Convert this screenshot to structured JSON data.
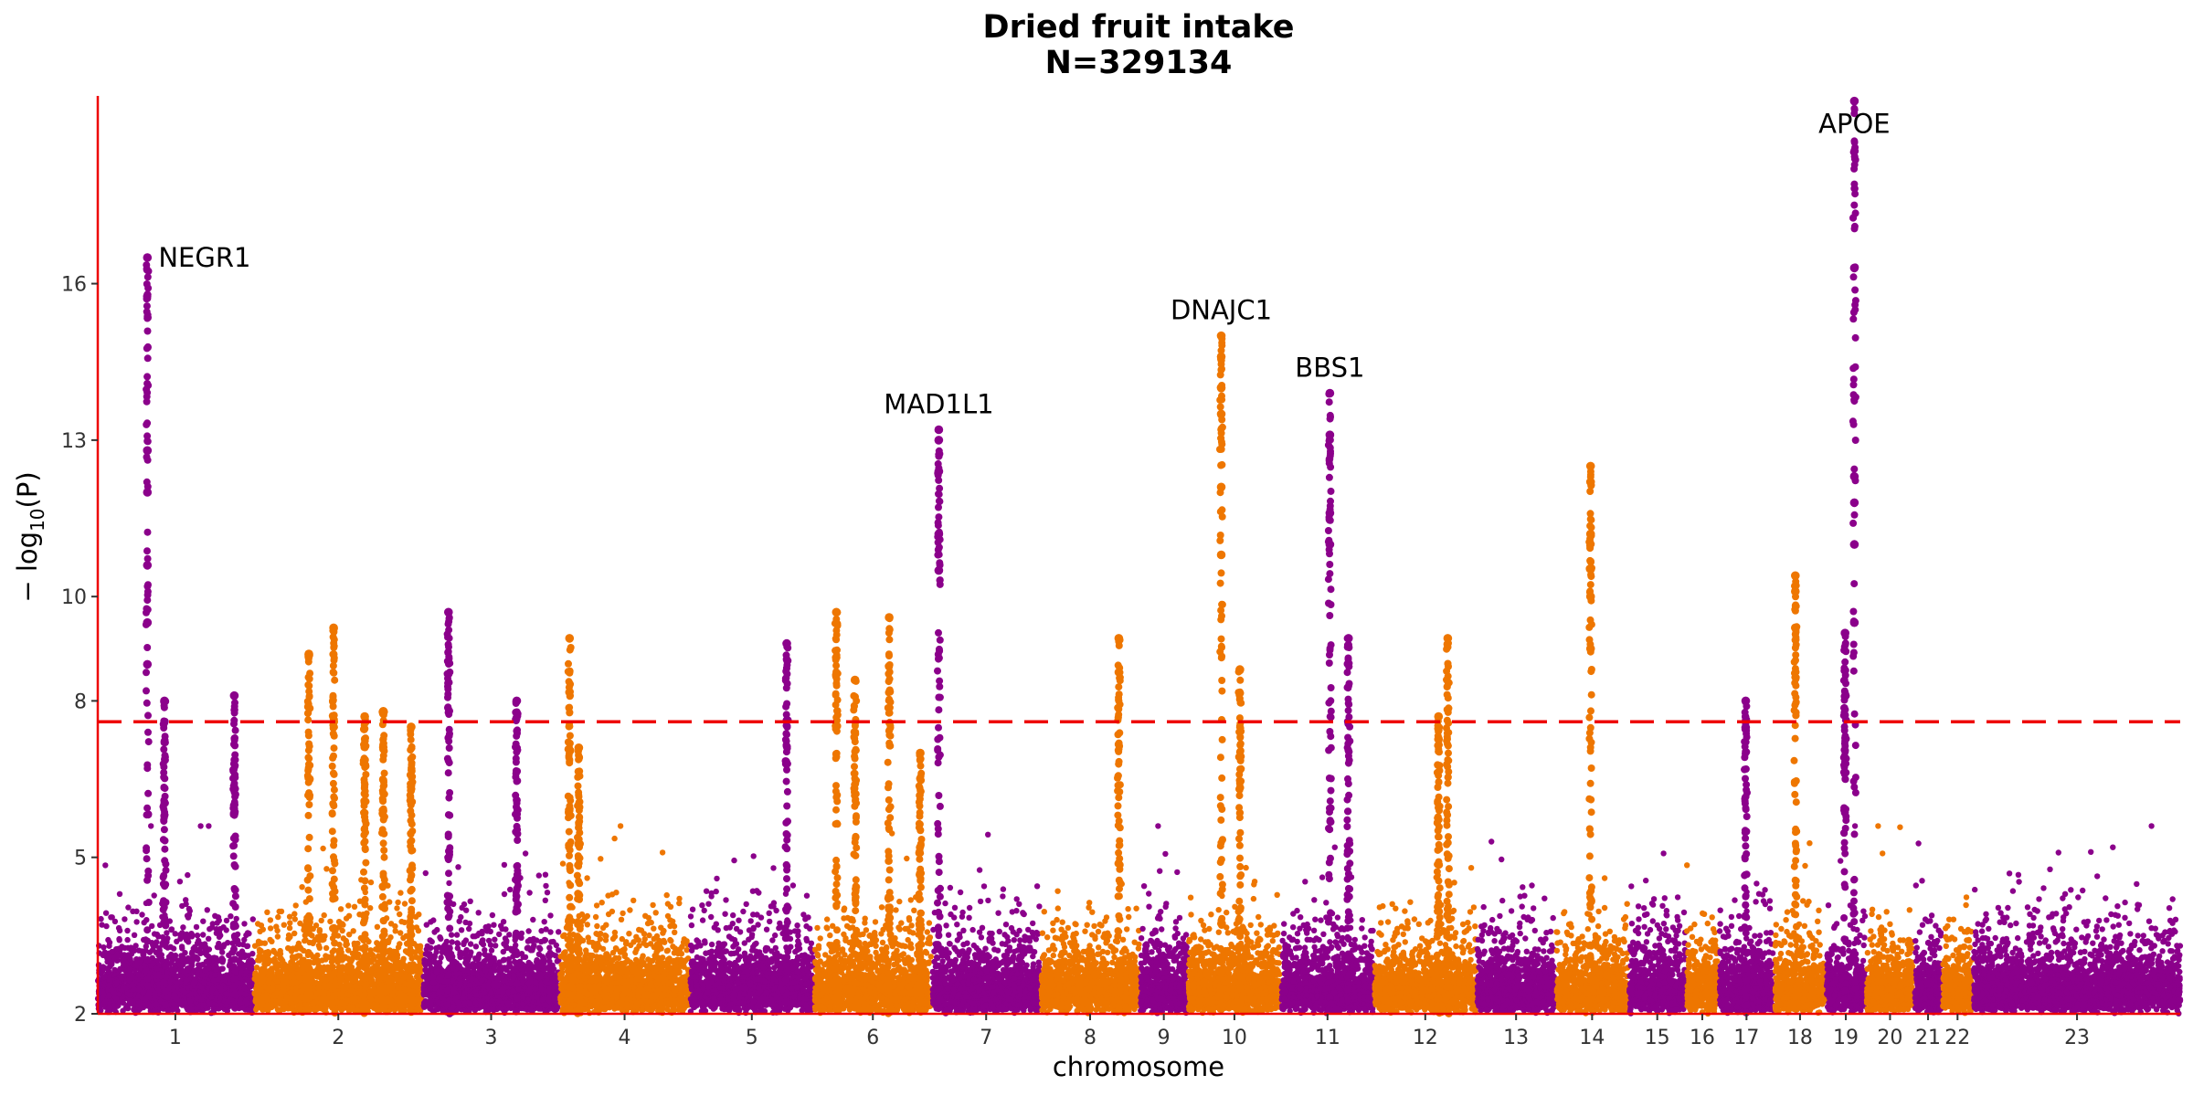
{
  "chart_data": {
    "type": "scatter",
    "title": "Dried fruit intake",
    "subtitle": "N=329134",
    "xlabel": "chromosome",
    "ylabel": "− log10(P)",
    "ylabel_main": "− log",
    "ylabel_sub": "10",
    "ylabel_tail": "(P)",
    "ylim": [
      2,
      19.6
    ],
    "yticks": [
      2,
      5,
      8,
      10,
      13,
      16
    ],
    "significance_threshold": 7.6,
    "grid": false,
    "colors": {
      "odd": "#8B008B",
      "even": "#EE7600",
      "axis": "#EE0000",
      "threshold": "#EE0000"
    },
    "chromosomes": [
      {
        "label": "1",
        "start": 0.0,
        "end": 50.0
      },
      {
        "label": "2",
        "start": 50.5,
        "end": 104.5
      },
      {
        "label": "3",
        "start": 105.0,
        "end": 148.5
      },
      {
        "label": "4",
        "start": 149.0,
        "end": 190.5
      },
      {
        "label": "5",
        "start": 191.0,
        "end": 230.5
      },
      {
        "label": "6",
        "start": 231.0,
        "end": 268.5
      },
      {
        "label": "7",
        "start": 269.0,
        "end": 303.5
      },
      {
        "label": "8",
        "start": 304.0,
        "end": 335.5
      },
      {
        "label": "9",
        "start": 336.0,
        "end": 351.0
      },
      {
        "label": "10",
        "start": 351.5,
        "end": 381.0
      },
      {
        "label": "11",
        "start": 381.5,
        "end": 411.0
      },
      {
        "label": "12",
        "start": 411.5,
        "end": 444.0
      },
      {
        "label": "13",
        "start": 444.5,
        "end": 469.5
      },
      {
        "label": "14",
        "start": 470.0,
        "end": 493.0
      },
      {
        "label": "15",
        "start": 493.5,
        "end": 511.5
      },
      {
        "label": "16",
        "start": 512.0,
        "end": 522.0
      },
      {
        "label": "17",
        "start": 522.5,
        "end": 540.0
      },
      {
        "label": "18",
        "start": 540.5,
        "end": 556.5
      },
      {
        "label": "19",
        "start": 557.0,
        "end": 569.5
      },
      {
        "label": "20",
        "start": 570.0,
        "end": 585.0
      },
      {
        "label": "21",
        "start": 585.5,
        "end": 594.0
      },
      {
        "label": "22",
        "start": 594.5,
        "end": 604.0
      },
      {
        "label": "23",
        "start": 604.5,
        "end": 671.0
      }
    ],
    "xlim": [
      0,
      671
    ],
    "peaks": [
      {
        "x": 16,
        "top": 16.5,
        "extra": [
          12.8,
          12.0,
          10.6,
          9.5,
          8.7
        ]
      },
      {
        "x": 21.5,
        "top": 8.0
      },
      {
        "x": 44,
        "top": 8.1
      },
      {
        "x": 68,
        "top": 8.9
      },
      {
        "x": 76,
        "top": 9.4
      },
      {
        "x": 86,
        "top": 7.7
      },
      {
        "x": 92,
        "top": 7.8
      },
      {
        "x": 101,
        "top": 7.5
      },
      {
        "x": 113,
        "top": 9.7
      },
      {
        "x": 135,
        "top": 8.0
      },
      {
        "x": 152,
        "top": 9.2
      },
      {
        "x": 155,
        "top": 7.1
      },
      {
        "x": 222,
        "top": 9.1
      },
      {
        "x": 238,
        "top": 9.7
      },
      {
        "x": 244,
        "top": 8.4
      },
      {
        "x": 255,
        "top": 9.6
      },
      {
        "x": 265,
        "top": 7.0
      },
      {
        "x": 271,
        "top": 13.2,
        "extra": [
          13.0,
          12.4,
          11.2,
          10.5
        ]
      },
      {
        "x": 329,
        "top": 9.2
      },
      {
        "x": 362,
        "top": 15.0,
        "extra": [
          14.6,
          14.0,
          13.5,
          12.1,
          10.8
        ]
      },
      {
        "x": 368,
        "top": 8.6
      },
      {
        "x": 397,
        "top": 13.9,
        "extra": [
          13.1,
          11.6,
          11.0
        ]
      },
      {
        "x": 403,
        "top": 9.2
      },
      {
        "x": 435,
        "top": 9.2
      },
      {
        "x": 432,
        "top": 7.7
      },
      {
        "x": 481,
        "top": 12.5,
        "extra": [
          12.2,
          11.2,
          10.0,
          9.0
        ]
      },
      {
        "x": 531,
        "top": 8.0
      },
      {
        "x": 547,
        "top": 10.4,
        "extra": [
          10.1,
          9.4
        ]
      },
      {
        "x": 563,
        "top": 9.3
      },
      {
        "x": 566,
        "top": 19.5,
        "extra": [
          16.3,
          12.3,
          11.8,
          11.0,
          9.5
        ]
      }
    ],
    "annotations": [
      {
        "label": "NEGR1",
        "x": 16,
        "y": 16.5
      },
      {
        "label": "MAD1L1",
        "x": 271,
        "y": 13.2
      },
      {
        "label": "DNAJC1",
        "x": 362,
        "y": 15.0
      },
      {
        "label": "BBS1",
        "x": 397,
        "y": 13.9
      },
      {
        "label": "APOE",
        "x": 566,
        "y": 19.5
      }
    ]
  }
}
